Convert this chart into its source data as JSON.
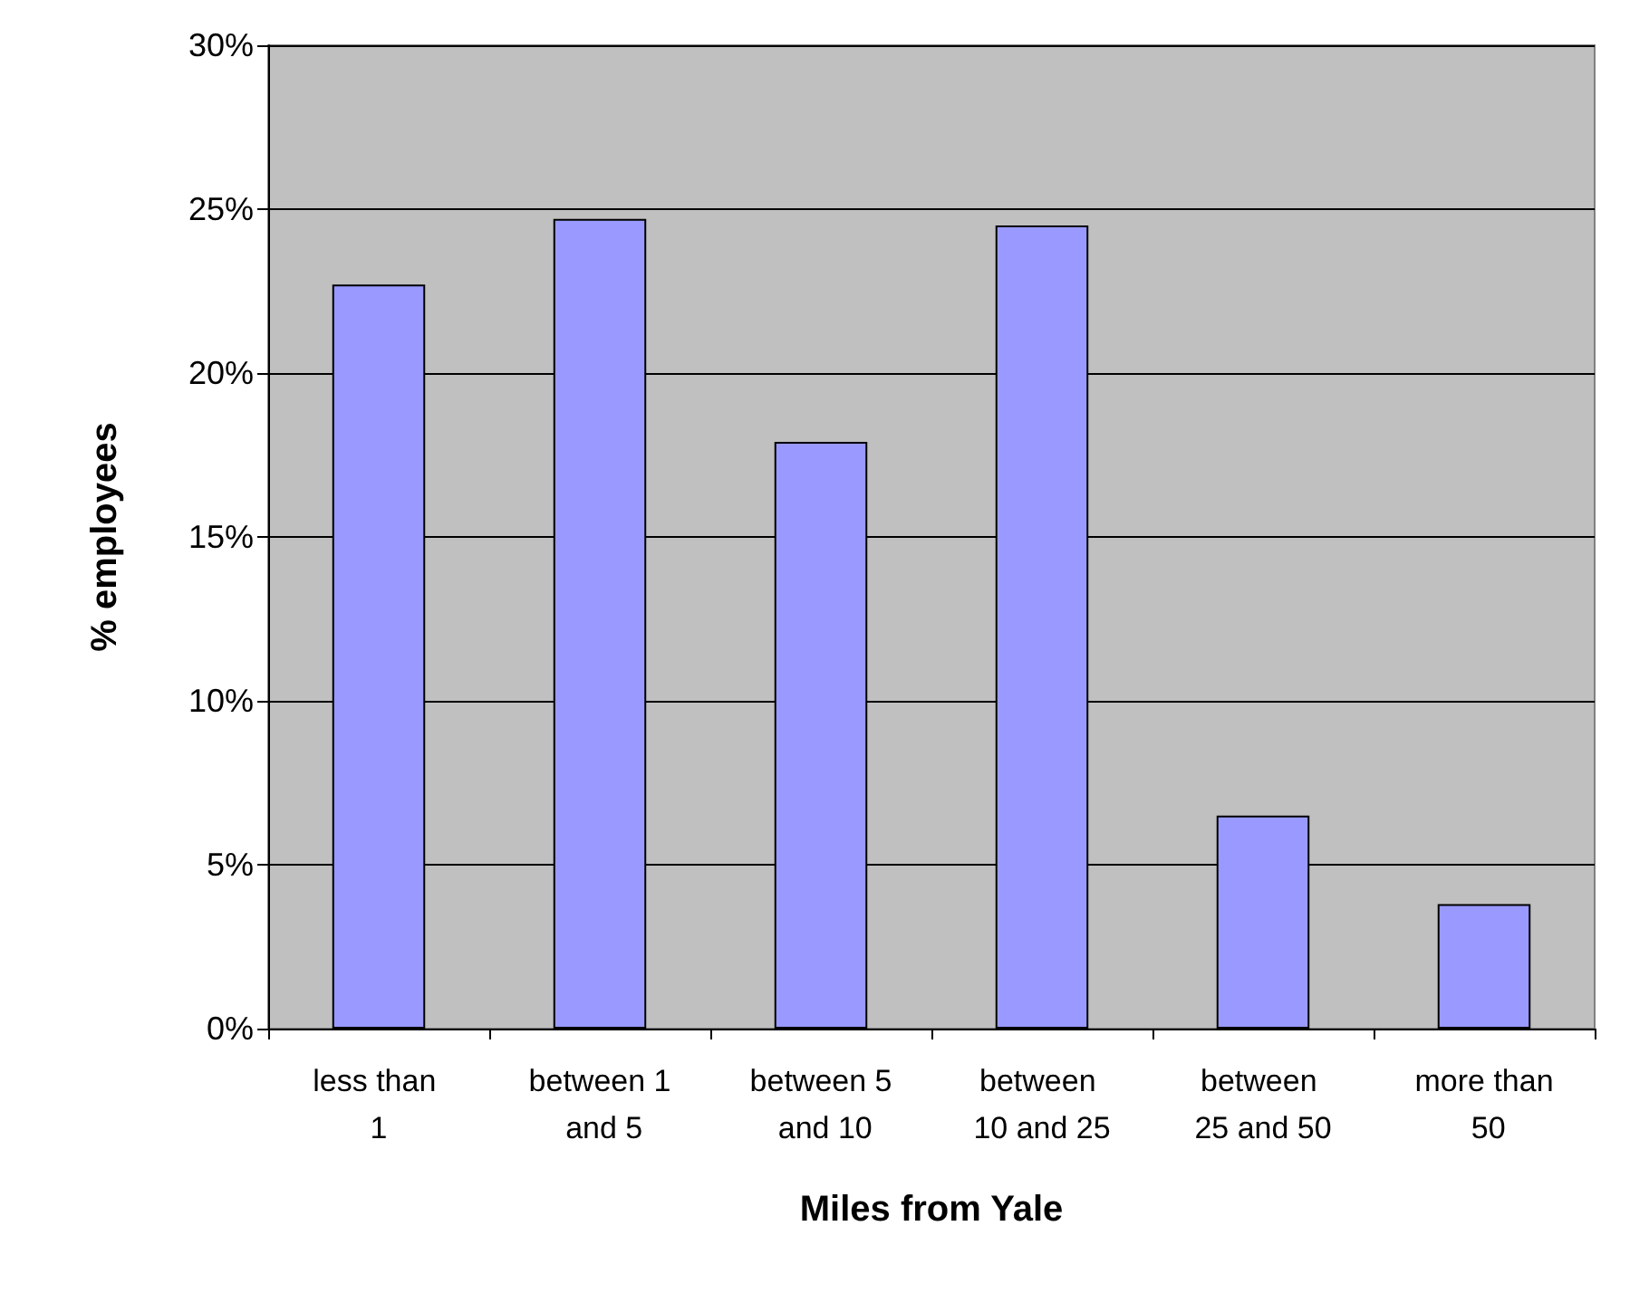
{
  "chart_data": {
    "type": "bar",
    "xlabel": "Miles from Yale",
    "ylabel": "% employees",
    "categories": [
      "less than 1",
      "between 1 and 5",
      "between 5 and 10",
      "between 10 and 25",
      "between 25 and 50",
      "more than 50"
    ],
    "values": [
      22.7,
      24.7,
      17.9,
      24.5,
      6.5,
      3.8
    ],
    "color": "#9999ff",
    "ylim": [
      0,
      30
    ],
    "yticks": [
      {
        "value": 0,
        "label": "0%"
      },
      {
        "value": 5,
        "label": "5%"
      },
      {
        "value": 10,
        "label": "10%"
      },
      {
        "value": 15,
        "label": "15%"
      },
      {
        "value": 20,
        "label": "20%"
      },
      {
        "value": 25,
        "label": "25%"
      },
      {
        "value": 30,
        "label": "30%"
      }
    ],
    "grid": "y"
  }
}
